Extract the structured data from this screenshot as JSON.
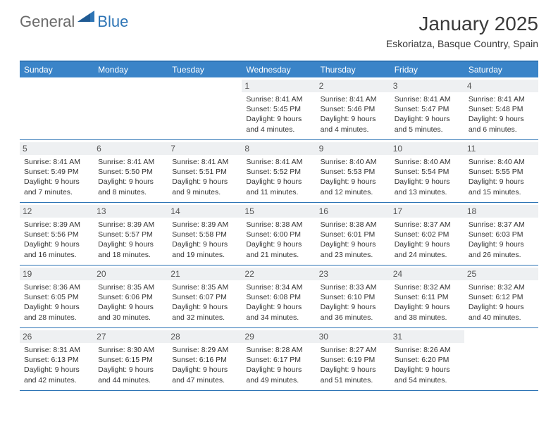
{
  "logo": {
    "text_general": "General",
    "text_blue": "Blue"
  },
  "title": "January 2025",
  "location": "Eskoriatza, Basque Country, Spain",
  "colors": {
    "header_bar": "#3a84c8",
    "rule": "#2d74b5",
    "daynum_bg": "#eef0f2",
    "text": "#333333",
    "logo_gray": "#6a6a6a",
    "logo_blue": "#2d74b5"
  },
  "daysOfWeek": [
    "Sunday",
    "Monday",
    "Tuesday",
    "Wednesday",
    "Thursday",
    "Friday",
    "Saturday"
  ],
  "weeks": [
    [
      {
        "n": "",
        "sunrise": "",
        "sunset": "",
        "daylight": ""
      },
      {
        "n": "",
        "sunrise": "",
        "sunset": "",
        "daylight": ""
      },
      {
        "n": "",
        "sunrise": "",
        "sunset": "",
        "daylight": ""
      },
      {
        "n": "1",
        "sunrise": "Sunrise: 8:41 AM",
        "sunset": "Sunset: 5:45 PM",
        "daylight": "Daylight: 9 hours and 4 minutes."
      },
      {
        "n": "2",
        "sunrise": "Sunrise: 8:41 AM",
        "sunset": "Sunset: 5:46 PM",
        "daylight": "Daylight: 9 hours and 4 minutes."
      },
      {
        "n": "3",
        "sunrise": "Sunrise: 8:41 AM",
        "sunset": "Sunset: 5:47 PM",
        "daylight": "Daylight: 9 hours and 5 minutes."
      },
      {
        "n": "4",
        "sunrise": "Sunrise: 8:41 AM",
        "sunset": "Sunset: 5:48 PM",
        "daylight": "Daylight: 9 hours and 6 minutes."
      }
    ],
    [
      {
        "n": "5",
        "sunrise": "Sunrise: 8:41 AM",
        "sunset": "Sunset: 5:49 PM",
        "daylight": "Daylight: 9 hours and 7 minutes."
      },
      {
        "n": "6",
        "sunrise": "Sunrise: 8:41 AM",
        "sunset": "Sunset: 5:50 PM",
        "daylight": "Daylight: 9 hours and 8 minutes."
      },
      {
        "n": "7",
        "sunrise": "Sunrise: 8:41 AM",
        "sunset": "Sunset: 5:51 PM",
        "daylight": "Daylight: 9 hours and 9 minutes."
      },
      {
        "n": "8",
        "sunrise": "Sunrise: 8:41 AM",
        "sunset": "Sunset: 5:52 PM",
        "daylight": "Daylight: 9 hours and 11 minutes."
      },
      {
        "n": "9",
        "sunrise": "Sunrise: 8:40 AM",
        "sunset": "Sunset: 5:53 PM",
        "daylight": "Daylight: 9 hours and 12 minutes."
      },
      {
        "n": "10",
        "sunrise": "Sunrise: 8:40 AM",
        "sunset": "Sunset: 5:54 PM",
        "daylight": "Daylight: 9 hours and 13 minutes."
      },
      {
        "n": "11",
        "sunrise": "Sunrise: 8:40 AM",
        "sunset": "Sunset: 5:55 PM",
        "daylight": "Daylight: 9 hours and 15 minutes."
      }
    ],
    [
      {
        "n": "12",
        "sunrise": "Sunrise: 8:39 AM",
        "sunset": "Sunset: 5:56 PM",
        "daylight": "Daylight: 9 hours and 16 minutes."
      },
      {
        "n": "13",
        "sunrise": "Sunrise: 8:39 AM",
        "sunset": "Sunset: 5:57 PM",
        "daylight": "Daylight: 9 hours and 18 minutes."
      },
      {
        "n": "14",
        "sunrise": "Sunrise: 8:39 AM",
        "sunset": "Sunset: 5:58 PM",
        "daylight": "Daylight: 9 hours and 19 minutes."
      },
      {
        "n": "15",
        "sunrise": "Sunrise: 8:38 AM",
        "sunset": "Sunset: 6:00 PM",
        "daylight": "Daylight: 9 hours and 21 minutes."
      },
      {
        "n": "16",
        "sunrise": "Sunrise: 8:38 AM",
        "sunset": "Sunset: 6:01 PM",
        "daylight": "Daylight: 9 hours and 23 minutes."
      },
      {
        "n": "17",
        "sunrise": "Sunrise: 8:37 AM",
        "sunset": "Sunset: 6:02 PM",
        "daylight": "Daylight: 9 hours and 24 minutes."
      },
      {
        "n": "18",
        "sunrise": "Sunrise: 8:37 AM",
        "sunset": "Sunset: 6:03 PM",
        "daylight": "Daylight: 9 hours and 26 minutes."
      }
    ],
    [
      {
        "n": "19",
        "sunrise": "Sunrise: 8:36 AM",
        "sunset": "Sunset: 6:05 PM",
        "daylight": "Daylight: 9 hours and 28 minutes."
      },
      {
        "n": "20",
        "sunrise": "Sunrise: 8:35 AM",
        "sunset": "Sunset: 6:06 PM",
        "daylight": "Daylight: 9 hours and 30 minutes."
      },
      {
        "n": "21",
        "sunrise": "Sunrise: 8:35 AM",
        "sunset": "Sunset: 6:07 PM",
        "daylight": "Daylight: 9 hours and 32 minutes."
      },
      {
        "n": "22",
        "sunrise": "Sunrise: 8:34 AM",
        "sunset": "Sunset: 6:08 PM",
        "daylight": "Daylight: 9 hours and 34 minutes."
      },
      {
        "n": "23",
        "sunrise": "Sunrise: 8:33 AM",
        "sunset": "Sunset: 6:10 PM",
        "daylight": "Daylight: 9 hours and 36 minutes."
      },
      {
        "n": "24",
        "sunrise": "Sunrise: 8:32 AM",
        "sunset": "Sunset: 6:11 PM",
        "daylight": "Daylight: 9 hours and 38 minutes."
      },
      {
        "n": "25",
        "sunrise": "Sunrise: 8:32 AM",
        "sunset": "Sunset: 6:12 PM",
        "daylight": "Daylight: 9 hours and 40 minutes."
      }
    ],
    [
      {
        "n": "26",
        "sunrise": "Sunrise: 8:31 AM",
        "sunset": "Sunset: 6:13 PM",
        "daylight": "Daylight: 9 hours and 42 minutes."
      },
      {
        "n": "27",
        "sunrise": "Sunrise: 8:30 AM",
        "sunset": "Sunset: 6:15 PM",
        "daylight": "Daylight: 9 hours and 44 minutes."
      },
      {
        "n": "28",
        "sunrise": "Sunrise: 8:29 AM",
        "sunset": "Sunset: 6:16 PM",
        "daylight": "Daylight: 9 hours and 47 minutes."
      },
      {
        "n": "29",
        "sunrise": "Sunrise: 8:28 AM",
        "sunset": "Sunset: 6:17 PM",
        "daylight": "Daylight: 9 hours and 49 minutes."
      },
      {
        "n": "30",
        "sunrise": "Sunrise: 8:27 AM",
        "sunset": "Sunset: 6:19 PM",
        "daylight": "Daylight: 9 hours and 51 minutes."
      },
      {
        "n": "31",
        "sunrise": "Sunrise: 8:26 AM",
        "sunset": "Sunset: 6:20 PM",
        "daylight": "Daylight: 9 hours and 54 minutes."
      },
      {
        "n": "",
        "sunrise": "",
        "sunset": "",
        "daylight": ""
      }
    ]
  ]
}
